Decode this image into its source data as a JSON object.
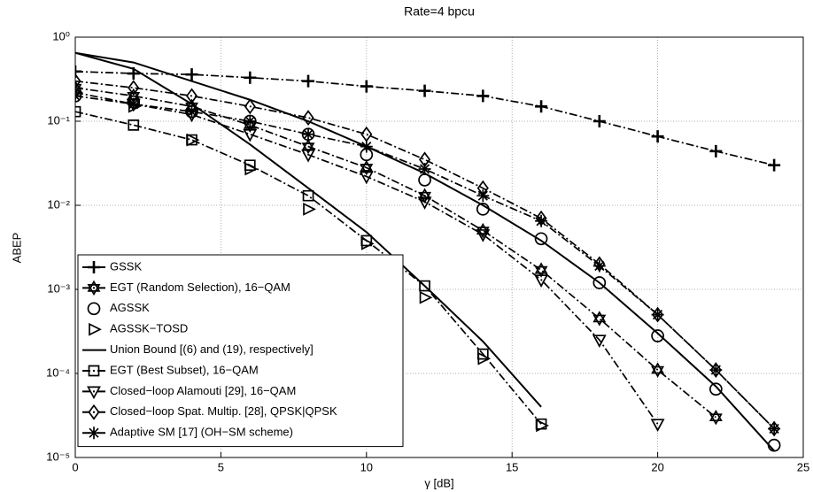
{
  "chart_data": {
    "type": "line",
    "title": "Rate=4 bpcu",
    "x_label": "γ [dB]",
    "y_label": "ABEP",
    "x": [
      0,
      2,
      4,
      6,
      8,
      10,
      12,
      14,
      16,
      18,
      20,
      22,
      24
    ],
    "xlim": [
      0,
      25
    ],
    "xticks": [
      0,
      5,
      10,
      15,
      20,
      25
    ],
    "log_y": true,
    "ylim": [
      1e-05,
      1
    ],
    "yticks": [
      {
        "value": 1,
        "label": "10⁰"
      },
      {
        "value": 0.1,
        "label": "10⁻¹"
      },
      {
        "value": 0.01,
        "label": "10⁻²"
      },
      {
        "value": 0.001,
        "label": "10⁻³"
      },
      {
        "value": 0.0001,
        "label": "10⁻⁴"
      },
      {
        "value": 1e-05,
        "label": "10⁻⁵"
      }
    ],
    "grid": true,
    "legend": "lower-left",
    "series": [
      {
        "name": "GSSK",
        "color": "#000000",
        "marker": "plus",
        "line": "dash-dot",
        "values": [
          0.39,
          0.37,
          0.36,
          0.33,
          0.3,
          0.26,
          0.23,
          0.2,
          0.15,
          0.1,
          0.066,
          0.044,
          0.03
        ]
      },
      {
        "name": "EGT (Random Selection), 16−QAM",
        "color": "#000000",
        "marker": "hexagram",
        "line": "dash-dot",
        "values": [
          0.25,
          0.2,
          0.15,
          0.09,
          0.05,
          0.028,
          0.013,
          0.005,
          0.0017,
          0.00045,
          0.00011,
          3e-05,
          null
        ]
      },
      {
        "name": "AGSSK",
        "color": "#000000",
        "marker": "circle",
        "line": "none",
        "values": [
          0.2,
          0.17,
          0.13,
          0.1,
          0.07,
          0.04,
          0.02,
          0.009,
          0.004,
          0.0012,
          0.00028,
          6.5e-05,
          1.4e-05
        ]
      },
      {
        "name": "AGSSK−TOSD",
        "color": "#000000",
        "marker": "triangle-right",
        "line": "none",
        "values": [
          0.22,
          0.15,
          0.06,
          0.027,
          0.009,
          0.0035,
          0.0008,
          0.00015,
          2.4e-05,
          null,
          null,
          null,
          null
        ]
      },
      {
        "name": "Union Bound [(6) and (19), respectively]",
        "color": "#000000",
        "marker": "none",
        "line": "solid",
        "values": [
          0.65,
          0.42,
          0.16,
          0.053,
          0.016,
          0.0048,
          0.0011,
          0.00024,
          4e-05,
          null,
          null,
          null,
          null
        ]
      },
      {
        "name": null,
        "color": "#000000",
        "marker": "none",
        "line": "solid",
        "values": [
          0.65,
          0.5,
          0.3,
          0.18,
          0.1,
          0.05,
          0.024,
          0.01,
          0.0038,
          0.0012,
          0.0003,
          7e-05,
          1.2e-05
        ]
      },
      {
        "name": "EGT (Best Subset), 16−QAM",
        "color": "#000000",
        "marker": "square",
        "line": "dash-dot",
        "values": [
          0.13,
          0.09,
          0.06,
          0.03,
          0.013,
          0.0038,
          0.0011,
          0.00017,
          2.5e-05,
          null,
          null,
          null,
          null
        ]
      },
      {
        "name": "Closed−loop Alamouti [29], 16−QAM",
        "color": "#000000",
        "marker": "triangle-down",
        "line": "dash-dot",
        "values": [
          0.22,
          0.16,
          0.12,
          0.07,
          0.04,
          0.022,
          0.011,
          0.0045,
          0.0013,
          0.00025,
          2.5e-05,
          null,
          null
        ]
      },
      {
        "name": "Closed−loop Spat. Multip. [28], QPSK|QPSK",
        "color": "#000000",
        "marker": "diamond",
        "line": "dash-dot",
        "values": [
          0.3,
          0.25,
          0.2,
          0.15,
          0.11,
          0.07,
          0.035,
          0.016,
          0.007,
          0.002,
          0.0005,
          0.00011,
          2.2e-05
        ]
      },
      {
        "name": "Adaptive SM [17] (OH−SM scheme)",
        "color": "#000000",
        "marker": "asterisk",
        "line": "dash-dot",
        "values": [
          0.2,
          0.16,
          0.13,
          0.1,
          0.07,
          0.05,
          0.027,
          0.013,
          0.0065,
          0.0019,
          0.0005,
          0.00011,
          2.2e-05
        ]
      }
    ]
  }
}
